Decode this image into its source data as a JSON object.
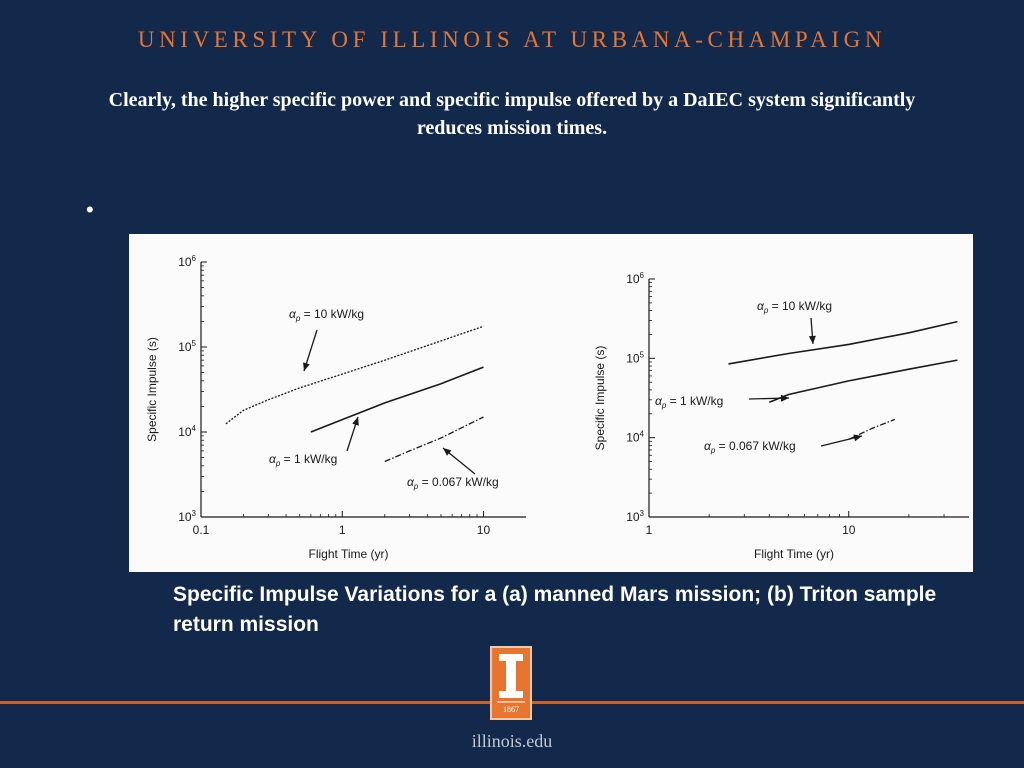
{
  "header": {
    "university": "UNIVERSITY OF ILLINOIS AT URBANA-CHAMPAIGN"
  },
  "slide": {
    "headline": "Clearly, the higher specific power and specific impulse offered by a DaIEC system significantly reduces mission times.",
    "bullet": "•",
    "caption": "Specific Impulse Variations for a (a) manned Mars mission;  (b) Triton sample return mission"
  },
  "footer": {
    "logo_year": "1867",
    "url": "illinois.edu"
  },
  "colors": {
    "background": "#13294b",
    "accent": "#e8752f",
    "plot_line": "#1a1a1a"
  },
  "chart_data": [
    {
      "type": "line",
      "panel": "a",
      "xscale": "log",
      "yscale": "log",
      "xlim": [
        0.1,
        20
      ],
      "ylim": [
        1000,
        1000000
      ],
      "x_ticks": [
        "0.1",
        "1",
        "10"
      ],
      "y_ticks": [
        "10^3",
        "10^4",
        "10^5",
        "10^6"
      ],
      "xlabel": "Flight Time (yr)",
      "ylabel": "Specific Impulse (s)",
      "series": [
        {
          "name": "αp = 10 kW/kg",
          "style": "dotted",
          "x": [
            0.15,
            0.2,
            0.3,
            0.5,
            1,
            2,
            5,
            10
          ],
          "y": [
            12500,
            18000,
            24000,
            33000,
            48000,
            70000,
            118000,
            175000
          ]
        },
        {
          "name": "αp = 1 kW/kg",
          "style": "solid",
          "x": [
            0.6,
            1,
            2,
            5,
            10
          ],
          "y": [
            10000,
            14000,
            22000,
            37000,
            58000
          ]
        },
        {
          "name": "αp = 0.067 kW/kg",
          "style": "dashdot",
          "x": [
            2,
            3,
            5,
            10
          ],
          "y": [
            4500,
            6000,
            8500,
            15000
          ]
        }
      ],
      "annotations": [
        {
          "label": "α",
          "sub": "p",
          "value": " = 10 kW/kg"
        },
        {
          "label": "α",
          "sub": "p",
          "value": " = 1 kW/kg"
        },
        {
          "label": "α",
          "sub": "p",
          "value": " = 0.067 kW/kg"
        }
      ]
    },
    {
      "type": "line",
      "panel": "b",
      "xscale": "log",
      "yscale": "log",
      "xlim": [
        1,
        40
      ],
      "ylim": [
        1000,
        1000000
      ],
      "x_ticks": [
        "1",
        "10"
      ],
      "y_ticks": [
        "10^3",
        "10^4",
        "10^5",
        "10^6"
      ],
      "xlabel": "Flight Time (yr)",
      "ylabel": "Specific Impulse (s)",
      "series": [
        {
          "name": "αp = 10 kW/kg",
          "style": "solid",
          "x": [
            2.5,
            5,
            10,
            20,
            35
          ],
          "y": [
            85000,
            115000,
            150000,
            210000,
            290000
          ]
        },
        {
          "name": "αp = 1 kW/kg",
          "style": "solid",
          "x": [
            4,
            5,
            10,
            20,
            35
          ],
          "y": [
            28000,
            35000,
            52000,
            73000,
            95000
          ]
        },
        {
          "name": "αp = 0.067 kW/kg",
          "style": "dashdot",
          "x": [
            10,
            13,
            17
          ],
          "y": [
            9500,
            13000,
            17000
          ]
        }
      ],
      "annotations": [
        {
          "label": "α",
          "sub": "p",
          "value": " = 10 kW/kg"
        },
        {
          "label": "α",
          "sub": "p",
          "value": " = 1 kW/kg"
        },
        {
          "label": "α",
          "sub": "p",
          "value": " = 0.067 kW/kg"
        }
      ]
    }
  ]
}
